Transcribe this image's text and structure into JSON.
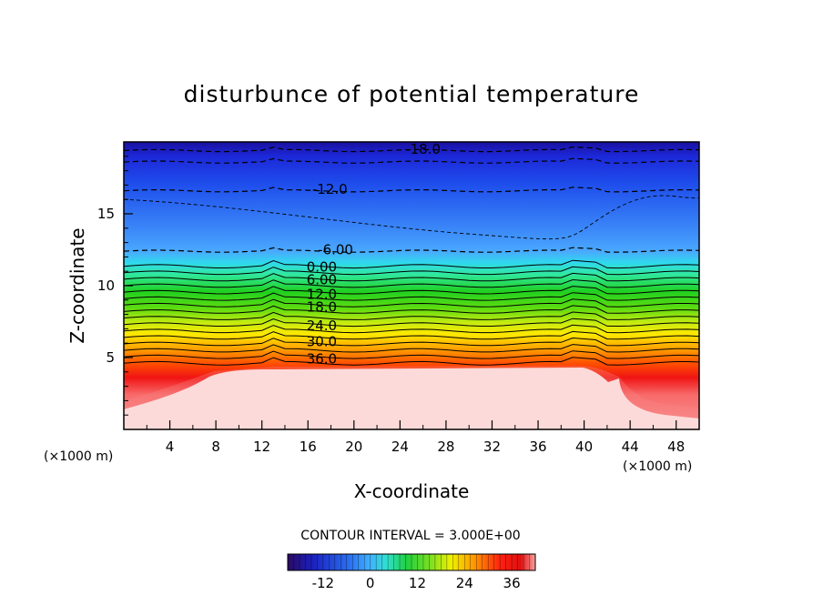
{
  "chart_data": {
    "type": "heatmap",
    "title": "disturbunce of potential temperature",
    "xlabel": "X-coordinate",
    "ylabel": "Z-coordinate",
    "x_unit_left": "(×1000 m)",
    "x_unit_right": "(×1000 m)",
    "xlim": [
      0,
      50
    ],
    "ylim": [
      0,
      20
    ],
    "x_ticks": [
      "4",
      "8",
      "12",
      "16",
      "20",
      "24",
      "28",
      "32",
      "36",
      "40",
      "44",
      "48"
    ],
    "y_ticks": [
      "5",
      "10",
      "15"
    ],
    "contour_interval_label": "CONTOUR INTERVAL = 3.000E+00",
    "contour_interval": 3.0,
    "value_range": [
      -21,
      42
    ],
    "contour_labels": [
      {
        "text": "-18.0",
        "x": 26.0,
        "z": 19.5
      },
      {
        "text": "-12.0",
        "x": 17.9,
        "z": 16.7
      },
      {
        "text": "-6.00",
        "x": 18.4,
        "z": 12.5
      },
      {
        "text": "0.00",
        "x": 17.2,
        "z": 11.3
      },
      {
        "text": "6.00",
        "x": 17.2,
        "z": 10.4
      },
      {
        "text": "12.0",
        "x": 17.2,
        "z": 9.4
      },
      {
        "text": "18.0",
        "x": 17.2,
        "z": 8.5
      },
      {
        "text": "24.0",
        "x": 17.2,
        "z": 7.2
      },
      {
        "text": "30.0",
        "x": 17.2,
        "z": 6.1
      },
      {
        "text": "36.0",
        "x": 17.2,
        "z": 4.9
      }
    ],
    "colorbar": {
      "tick_labels": [
        "-12",
        "0",
        "12",
        "24",
        "36"
      ],
      "tick_values": [
        -12,
        0,
        12,
        24,
        36
      ],
      "range": [
        -21,
        42
      ]
    }
  }
}
